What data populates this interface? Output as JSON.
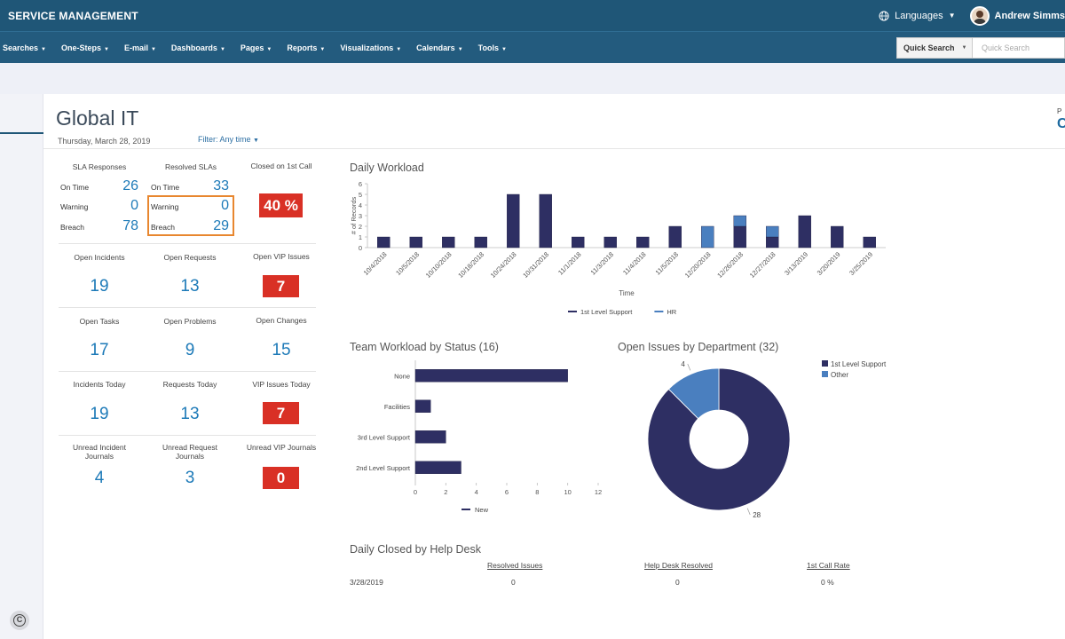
{
  "app": {
    "title": "SERVICE MANAGEMENT"
  },
  "topbar": {
    "languages_label": "Languages",
    "user_name": "Andrew Simms"
  },
  "nav": {
    "items": [
      "Searches",
      "One-Steps",
      "E-mail",
      "Dashboards",
      "Pages",
      "Reports",
      "Visualizations",
      "Calendars",
      "Tools"
    ],
    "quick_search_label": "Quick Search",
    "quick_search_placeholder": "Quick Search"
  },
  "page": {
    "title": "Global IT",
    "date": "Thursday, March 28, 2019",
    "filter": "Filter: Any time",
    "corner_p": "P",
    "corner_c": "C"
  },
  "kpis": {
    "sla_responses": {
      "label": "SLA Responses",
      "on_time_label": "On Time",
      "on_time": "26",
      "warning_label": "Warning",
      "warning": "0",
      "breach_label": "Breach",
      "breach": "78"
    },
    "resolved_slas": {
      "label": "Resolved SLAs",
      "on_time_label": "On Time",
      "on_time": "33",
      "warning_label": "Warning",
      "warning": "0",
      "breach_label": "Breach",
      "breach": "29"
    },
    "closed_first_call": {
      "label": "Closed on 1st Call",
      "value": "40 %"
    },
    "open_incidents": {
      "label": "Open Incidents",
      "value": "19"
    },
    "open_requests": {
      "label": "Open Requests",
      "value": "13"
    },
    "open_vip_issues": {
      "label": "Open VIP Issues",
      "value": "7"
    },
    "open_tasks": {
      "label": "Open Tasks",
      "value": "17"
    },
    "open_problems": {
      "label": "Open Problems",
      "value": "9"
    },
    "open_changes": {
      "label": "Open Changes",
      "value": "15"
    },
    "incidents_today": {
      "label": "Incidents Today",
      "value": "19"
    },
    "requests_today": {
      "label": "Requests Today",
      "value": "13"
    },
    "vip_issues_today": {
      "label": "VIP Issues Today",
      "value": "7"
    },
    "unread_incident_journals": {
      "label": "Unread Incident Journals",
      "line1": "Unread Incident",
      "line2": "Journals",
      "value": "4"
    },
    "unread_request_journals": {
      "label": "Unread Request Journals",
      "line1": "Unread Request",
      "line2": "Journals",
      "value": "3"
    },
    "unread_vip_journals": {
      "label": "Unread VIP Journals",
      "value": "0"
    }
  },
  "colors": {
    "navy": "#2e2f63",
    "blue": "#4a7fbf",
    "red": "#d93025",
    "accent": "#1d7ab8",
    "orange": "#e8872f"
  },
  "chart_data": [
    {
      "type": "bar",
      "title": "Daily Workload",
      "xlabel": "Time",
      "ylabel": "# of Records",
      "ylim": [
        0,
        6
      ],
      "yticks": [
        0,
        1,
        2,
        3,
        4,
        5,
        6
      ],
      "categories": [
        "10/4/2018",
        "10/5/2018",
        "10/10/2018",
        "10/18/2018",
        "10/24/2018",
        "10/31/2018",
        "11/1/2018",
        "11/3/2018",
        "11/4/2018",
        "11/5/2018",
        "12/20/2018",
        "12/26/2018",
        "12/27/2018",
        "3/13/2019",
        "3/20/2019",
        "3/25/2019"
      ],
      "stacked": true,
      "series": [
        {
          "name": "1st Level Support",
          "color": "#2e2f63",
          "values": [
            1,
            1,
            1,
            1,
            5,
            5,
            1,
            1,
            1,
            2,
            0,
            2,
            1,
            3,
            2,
            1
          ]
        },
        {
          "name": "HR",
          "color": "#4a7fbf",
          "values": [
            0,
            0,
            0,
            0,
            0,
            0,
            0,
            0,
            0,
            0,
            2,
            1,
            1,
            0,
            0,
            0
          ]
        }
      ],
      "legend": "bottom"
    },
    {
      "type": "bar",
      "orientation": "horizontal",
      "title": "Team Workload by Status (16)",
      "categories": [
        "None",
        "Facilities",
        "3rd Level Support",
        "2nd Level Support"
      ],
      "xlim": [
        0,
        12
      ],
      "xticks": [
        0,
        2,
        4,
        6,
        8,
        10,
        12
      ],
      "series": [
        {
          "name": "New",
          "color": "#2e2f63",
          "values": [
            10,
            1,
            2,
            3
          ]
        }
      ],
      "legend": "bottom"
    },
    {
      "type": "pie",
      "donut": true,
      "title": "Open Issues by Department (32)",
      "slices": [
        {
          "label": "1st Level Support",
          "value": 28,
          "color": "#2e2f63"
        },
        {
          "label": "Other",
          "value": 4,
          "color": "#4a7fbf"
        }
      ],
      "legend": "top-right"
    }
  ],
  "table": {
    "title": "Daily Closed by Help Desk",
    "headers": [
      "Resolved Issues",
      "Help Desk Resolved",
      "1st Call Rate"
    ],
    "rows": [
      {
        "date": "3/28/2019",
        "resolved": "0",
        "help_desk": "0",
        "rate": "0 %"
      }
    ]
  }
}
